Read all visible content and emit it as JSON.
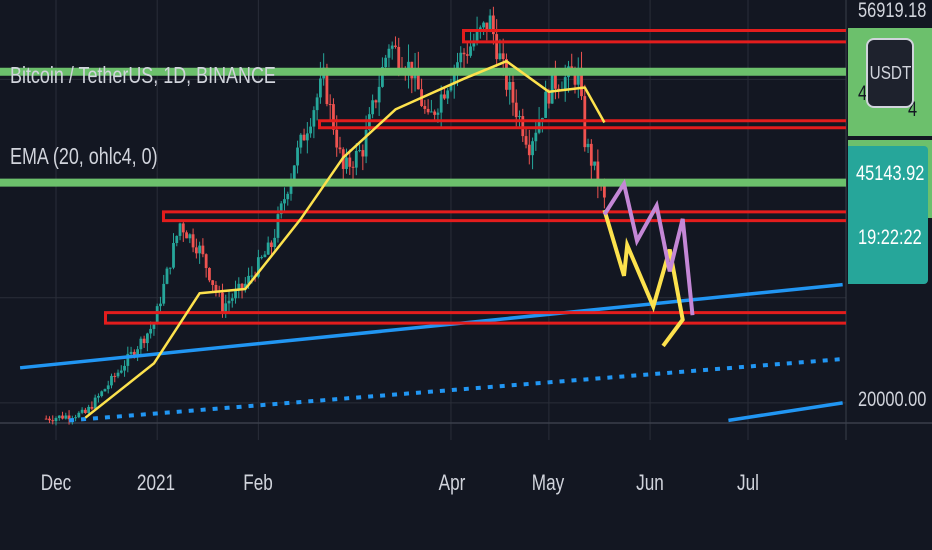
{
  "legend": {
    "symbol": "Bitcoin / TetherUS, 1D, BINANCE",
    "ema": "EMA (20, ohlc4, 0)"
  },
  "quote_currency_button": "USDT",
  "price_axis_labels": {
    "top": "56919.18",
    "upper": "4",
    "upper_right": "4",
    "current": "45143.92",
    "countdown": "19:22:22",
    "bottom": "20000.00"
  },
  "colors": {
    "background": "#131722",
    "grid": "#2a2e39",
    "candle_up": "#26a69a",
    "candle_down": "#ef5350",
    "ema": "#fde24d",
    "support": "#2196f3",
    "resistance_red": "#e31d1d",
    "level_green": "#6cc06c",
    "projection_yellow": "#fde24d",
    "projection_purple": "#c487d6",
    "price_tag": "#26a69a"
  },
  "chart_data": {
    "type": "candlestick",
    "symbol": "Bitcoin / TetherUS",
    "interval": "1D",
    "exchange": "BINANCE",
    "indicator": "EMA (20, ohlc4, 0)",
    "x_ticks": [
      "Dec",
      "2021",
      "Feb",
      "Apr",
      "May",
      "Jun",
      "Jul"
    ],
    "y_ticks": [
      20000,
      45143.92,
      56919.18
    ],
    "current_price": 45143.92,
    "countdown": "19:22:22",
    "close_path": [
      {
        "date": "2020-11-28",
        "close": 18200
      },
      {
        "date": "2020-12-10",
        "close": 18800
      },
      {
        "date": "2020-12-20",
        "close": 23500
      },
      {
        "date": "2020-12-31",
        "close": 29000
      },
      {
        "date": "2021-01-08",
        "close": 40500
      },
      {
        "date": "2021-01-14",
        "close": 37500
      },
      {
        "date": "2021-01-21",
        "close": 31000
      },
      {
        "date": "2021-01-28",
        "close": 33500
      },
      {
        "date": "2021-02-05",
        "close": 38000
      },
      {
        "date": "2021-02-12",
        "close": 47500
      },
      {
        "date": "2021-02-21",
        "close": 57000
      },
      {
        "date": "2021-02-27",
        "close": 46500
      },
      {
        "date": "2021-03-05",
        "close": 49000
      },
      {
        "date": "2021-03-13",
        "close": 61000
      },
      {
        "date": "2021-03-20",
        "close": 58000
      },
      {
        "date": "2021-03-25",
        "close": 52000
      },
      {
        "date": "2021-04-03",
        "close": 59000
      },
      {
        "date": "2021-04-13",
        "close": 63500
      },
      {
        "date": "2021-04-18",
        "close": 56500
      },
      {
        "date": "2021-04-25",
        "close": 49500
      },
      {
        "date": "2021-05-02",
        "close": 56500
      },
      {
        "date": "2021-05-10",
        "close": 57500
      },
      {
        "date": "2021-05-12",
        "close": 50000
      },
      {
        "date": "2021-05-18",
        "close": 43000
      }
    ],
    "ema_20": [
      {
        "date": "2020-12-10",
        "value": 18300
      },
      {
        "date": "2020-12-31",
        "value": 24500
      },
      {
        "date": "2021-01-14",
        "value": 32500
      },
      {
        "date": "2021-01-28",
        "value": 33000
      },
      {
        "date": "2021-02-14",
        "value": 41000
      },
      {
        "date": "2021-02-27",
        "value": 48000
      },
      {
        "date": "2021-03-15",
        "value": 53500
      },
      {
        "date": "2021-04-05",
        "value": 57000
      },
      {
        "date": "2021-04-18",
        "value": 59000
      },
      {
        "date": "2021-05-01",
        "value": 55500
      },
      {
        "date": "2021-05-12",
        "value": 56000
      },
      {
        "date": "2021-05-18",
        "value": 52000
      }
    ],
    "horizontal_levels": [
      {
        "color": "red",
        "value": 62500
      },
      {
        "color": "red",
        "value": 61200
      },
      {
        "color": "green",
        "value": 57800
      },
      {
        "color": "red",
        "value": 52200
      },
      {
        "color": "red",
        "value": 51400
      },
      {
        "color": "green",
        "value": 45143.92
      },
      {
        "color": "red",
        "value": 41800
      },
      {
        "color": "red",
        "value": 40800
      },
      {
        "color": "red",
        "value": 30300
      },
      {
        "color": "red",
        "value": 29100
      }
    ],
    "trendlines": [
      {
        "style": "solid",
        "from": {
          "date": "2020-11-20",
          "value": 24000
        },
        "to": {
          "date": "2021-07-30",
          "value": 33500
        }
      },
      {
        "style": "dotted",
        "from": {
          "date": "2020-12-05",
          "value": 18000
        },
        "to": {
          "date": "2021-07-30",
          "value": 25000
        }
      },
      {
        "style": "solid",
        "from": {
          "date": "2021-06-25",
          "value": 18000
        },
        "to": {
          "date": "2021-07-30",
          "value": 20000
        }
      }
    ],
    "projection_yellow": [
      {
        "date": "2021-05-18",
        "value": 42000
      },
      {
        "date": "2021-05-24",
        "value": 34500
      },
      {
        "date": "2021-05-25",
        "value": 38000
      },
      {
        "date": "2021-06-02",
        "value": 31000
      },
      {
        "date": "2021-06-07",
        "value": 37500
      },
      {
        "date": "2021-06-11",
        "value": 29500
      },
      {
        "date": "2021-06-05",
        "value": 26500
      }
    ],
    "projection_purple": [
      {
        "date": "2021-05-18",
        "value": 41500
      },
      {
        "date": "2021-05-24",
        "value": 45000
      },
      {
        "date": "2021-05-28",
        "value": 38500
      },
      {
        "date": "2021-06-03",
        "value": 42500
      },
      {
        "date": "2021-06-07",
        "value": 35000
      },
      {
        "date": "2021-06-11",
        "value": 41000
      },
      {
        "date": "2021-06-14",
        "value": 30000
      }
    ]
  }
}
